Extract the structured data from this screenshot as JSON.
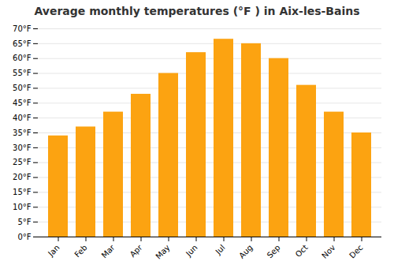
{
  "chart_data": {
    "type": "bar",
    "title": "Average monthly temperatures (°F ) in Aix-les-Bains",
    "categories": [
      "Jan",
      "Feb",
      "Mar",
      "Apr",
      "May",
      "Jun",
      "Jul",
      "Aug",
      "Sep",
      "Oct",
      "Nov",
      "Dec"
    ],
    "values": [
      34,
      37,
      42,
      48,
      55,
      62,
      66.5,
      65,
      60,
      51,
      42,
      35
    ],
    "color": "#FCA311",
    "ylim": [
      0,
      70
    ],
    "yticks": [
      {
        "value": 0,
        "label": "0°F"
      },
      {
        "value": 5,
        "label": "5°F"
      },
      {
        "value": 10,
        "label": "10°F"
      },
      {
        "value": 15,
        "label": "15°F"
      },
      {
        "value": 20,
        "label": "20°F"
      },
      {
        "value": 25,
        "label": "25°F"
      },
      {
        "value": 30,
        "label": "30°F"
      },
      {
        "value": 35,
        "label": "35°F"
      },
      {
        "value": 40,
        "label": "40°F"
      },
      {
        "value": 45,
        "label": "45°F"
      },
      {
        "value": 50,
        "label": "50°F"
      },
      {
        "value": 55,
        "label": "55°F"
      },
      {
        "value": 60,
        "label": "60°F"
      },
      {
        "value": 65,
        "label": "65°F"
      },
      {
        "value": 70,
        "label": "70°F"
      }
    ],
    "grid": true
  }
}
